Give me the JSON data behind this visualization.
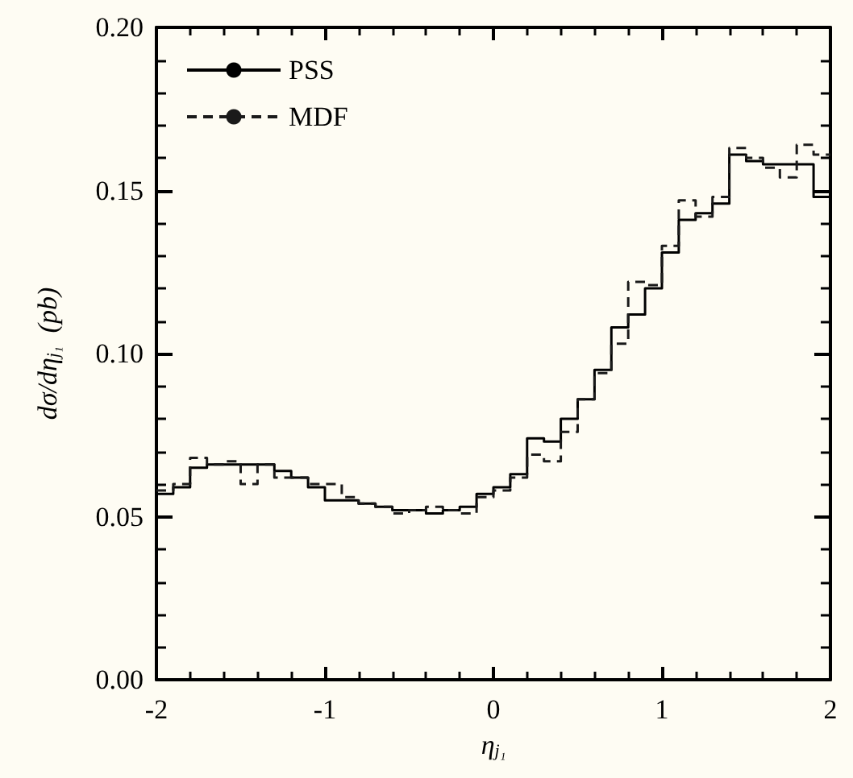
{
  "chart_data": {
    "type": "histogram",
    "xlabel": "η$_{j₁}$",
    "ylabel": "dσ/dη$_{j₁}$  (pb)",
    "bins": [
      -2.0,
      -1.9,
      -1.8,
      -1.7,
      -1.6,
      -1.5,
      -1.4,
      -1.3,
      -1.2,
      -1.1,
      -1.0,
      -0.9,
      -0.8,
      -0.7,
      -0.6,
      -0.5,
      -0.4,
      -0.3,
      -0.2,
      -0.1,
      0.0,
      0.1,
      0.2,
      0.3,
      0.4,
      0.5,
      0.6,
      0.7,
      0.8,
      0.9,
      1.0,
      1.1,
      1.2,
      1.3,
      1.4,
      1.5,
      1.6,
      1.7,
      1.8,
      1.9,
      2.0
    ],
    "series": [
      {
        "name": "PSS",
        "color": "#000000",
        "line_style": "solid",
        "values": [
          0.057,
          0.059,
          0.065,
          0.066,
          0.066,
          0.066,
          0.066,
          0.064,
          0.062,
          0.059,
          0.055,
          0.055,
          0.054,
          0.053,
          0.052,
          0.052,
          0.051,
          0.052,
          0.053,
          0.057,
          0.059,
          0.063,
          0.074,
          0.073,
          0.08,
          0.086,
          0.095,
          0.108,
          0.112,
          0.12,
          0.131,
          0.141,
          0.143,
          0.146,
          0.161,
          0.159,
          0.158,
          0.158,
          0.158,
          0.148
        ]
      },
      {
        "name": "MDF",
        "color": "#1a1a1a",
        "line_style": "dashed",
        "values": [
          0.058,
          0.06,
          0.068,
          0.066,
          0.067,
          0.06,
          0.066,
          0.062,
          0.062,
          0.06,
          0.06,
          0.056,
          0.054,
          0.053,
          0.051,
          0.052,
          0.053,
          0.052,
          0.051,
          0.056,
          0.058,
          0.062,
          0.069,
          0.067,
          0.076,
          0.086,
          0.094,
          0.103,
          0.122,
          0.121,
          0.133,
          0.147,
          0.142,
          0.148,
          0.163,
          0.16,
          0.157,
          0.154,
          0.164,
          0.161
        ]
      }
    ],
    "xlim": [
      -2,
      2
    ],
    "xticks": [
      -2,
      -1,
      0,
      1,
      2
    ],
    "ylim": [
      0,
      0.2
    ],
    "yticks": [
      {
        "value": 0,
        "label": "0.00"
      },
      {
        "value": 0.05,
        "label": "0.05"
      },
      {
        "value": 0.1,
        "label": "0.10"
      },
      {
        "value": 0.15,
        "label": "0.15"
      },
      {
        "value": 0.2,
        "label": "0.20"
      }
    ],
    "legend": "top left",
    "grid": false
  }
}
